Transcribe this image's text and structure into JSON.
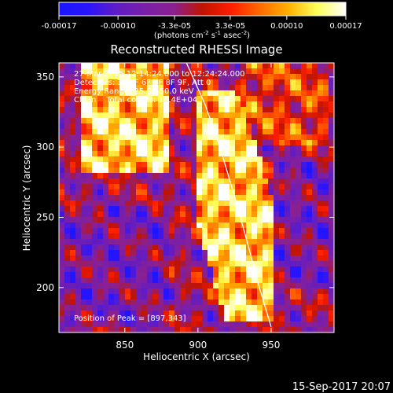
{
  "colors": {
    "background": "#000000",
    "foreground": "#ffffff",
    "colorbar_stops": [
      "#1a16ff",
      "#2a14ff",
      "#5f1cc5",
      "#7a1fa8",
      "#8b2090",
      "#c01400",
      "#ff1d00",
      "#ff6a00",
      "#ffb100",
      "#ffff5a",
      "#ffffff"
    ]
  },
  "colorbar": {
    "tick_labels": [
      "-0.00017",
      "-0.00010",
      "-3.3e-05",
      "3.3e-05",
      "0.00010",
      "0.00017"
    ],
    "tick_values": [
      -0.00017,
      -0.0001,
      -3.3e-05,
      3.3e-05,
      0.0001,
      0.00017
    ],
    "range": [
      -0.00017,
      0.00017
    ],
    "unit_label_parts": [
      "(photons cm",
      "-2",
      " s",
      "-1",
      " asec",
      "-2",
      ")"
    ]
  },
  "chart_data": {
    "type": "heatmap",
    "title": "Reconstructed RHESSI Image",
    "xlabel": "Heliocentric X (arcsec)",
    "ylabel": "Heliocentric Y (arcsec)",
    "xlim": [
      805,
      993
    ],
    "ylim": [
      168,
      360
    ],
    "x_ticks": [
      850,
      900,
      950
    ],
    "y_ticks": [
      200,
      250,
      300,
      350
    ],
    "annotations": [
      "27-Mar-2015 12:14:24.000 to 12:24:24.000",
      "Detectors: 3F 5F 6F 7F 8F 9F, Att 0",
      "Energy Range: 25.0 - 50.0 keV",
      "Clean    Total counts: 1.14E+04"
    ],
    "peak_text": "Position of Peak = [897,343]",
    "peak_position": [
      897,
      343
    ],
    "limb_curve": [
      [
        890,
        365
      ],
      [
        905,
        330
      ],
      [
        915,
        300
      ],
      [
        925,
        265
      ],
      [
        933,
        235
      ],
      [
        942,
        200
      ],
      [
        950,
        172
      ]
    ],
    "intensity_regions": [
      {
        "region": "upper-left bright band",
        "x": [
          820,
          880
        ],
        "y": [
          280,
          360
        ],
        "level": "high"
      },
      {
        "region": "limb bright ridge",
        "x": [
          900,
          950
        ],
        "y": [
          175,
          340
        ],
        "level": "high"
      },
      {
        "region": "upper-right bright band",
        "x": [
          930,
          990
        ],
        "y": [
          300,
          360
        ],
        "level": "medium"
      },
      {
        "region": "lower-left faint area",
        "x": [
          805,
          880
        ],
        "y": [
          170,
          260
        ],
        "level": "low"
      },
      {
        "region": "right faint area",
        "x": [
          950,
          993
        ],
        "y": [
          200,
          290
        ],
        "level": "low"
      }
    ]
  },
  "footer": {
    "date_stamp": "15-Sep-2017 20:07"
  }
}
